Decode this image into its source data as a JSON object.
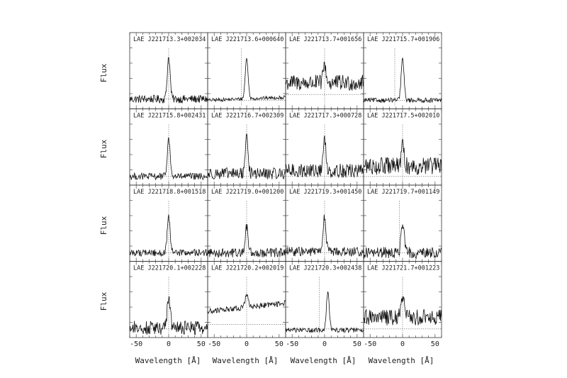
{
  "figure": {
    "ylabel": "Flux",
    "xlabel": "Wavelength [Å]"
  },
  "chart_data": {
    "type": "line",
    "grid": false,
    "rows": 4,
    "cols": 4,
    "shared_xlim": [
      -60,
      60
    ],
    "x_tick_labels": [
      "-50",
      "0",
      "50"
    ],
    "xlabel": "Wavelength [Å]",
    "ylabel": "Flux",
    "reference_lines": {
      "vertical_x": 0,
      "horizontal": "continuum level (dotted)"
    },
    "panels": [
      {
        "label": "LAE J221713.3+002034",
        "row": 0,
        "col": 0,
        "peak_x": 0,
        "peak_y": 0.85,
        "continuum": 0.12,
        "noise": 0.07,
        "trend": 0,
        "vline": 0,
        "hline": 0.12
      },
      {
        "label": "LAE J221713.6+000640",
        "row": 0,
        "col": 1,
        "peak_x": 0,
        "peak_y": 0.8,
        "continuum": 0.1,
        "noise": 0.03,
        "trend": 0.05,
        "vline": -8,
        "hline": 0.1
      },
      {
        "label": "LAE J221713.7+001656",
        "row": 0,
        "col": 2,
        "peak_x": 0,
        "peak_y": 0.72,
        "continuum": 0.4,
        "noise": 0.14,
        "trend": 0,
        "vline": 0,
        "hline": 0.2
      },
      {
        "label": "LAE J221715.7+001906",
        "row": 0,
        "col": 3,
        "peak_x": 0,
        "peak_y": 0.82,
        "continuum": 0.1,
        "noise": 0.04,
        "trend": 0,
        "vline": -12,
        "hline": 0.1
      },
      {
        "label": "LAE J221715.8+002431",
        "row": 1,
        "col": 0,
        "peak_x": 0,
        "peak_y": 0.75,
        "continuum": 0.1,
        "noise": 0.06,
        "trend": 0,
        "vline": 0,
        "hline": 0.1
      },
      {
        "label": "LAE J221716.7+002309",
        "row": 1,
        "col": 1,
        "peak_x": 0,
        "peak_y": 0.78,
        "continuum": 0.15,
        "noise": 0.1,
        "trend": 0,
        "vline": 0,
        "hline": 0.1
      },
      {
        "label": "LAE J221717.3+000728",
        "row": 1,
        "col": 2,
        "peak_x": 0,
        "peak_y": 0.72,
        "continuum": 0.2,
        "noise": 0.12,
        "trend": 0,
        "vline": 0,
        "hline": 0.1
      },
      {
        "label": "LAE J221717.5+002010",
        "row": 1,
        "col": 3,
        "peak_x": 0,
        "peak_y": 0.62,
        "continuum": 0.28,
        "noise": 0.15,
        "trend": 0,
        "vline": 0,
        "hline": 0.1
      },
      {
        "label": "LAE J221718.8+001518",
        "row": 2,
        "col": 0,
        "peak_x": 0,
        "peak_y": 0.7,
        "continuum": 0.1,
        "noise": 0.06,
        "trend": 0,
        "vline": 0,
        "hline": 0.1
      },
      {
        "label": "LAE J221719.0+001200",
        "row": 2,
        "col": 1,
        "peak_x": 0,
        "peak_y": 0.55,
        "continuum": 0.1,
        "noise": 0.08,
        "trend": 0,
        "vline": 0,
        "hline": 0.1
      },
      {
        "label": "LAE J221719.3+001450",
        "row": 2,
        "col": 2,
        "peak_x": 0,
        "peak_y": 0.72,
        "continuum": 0.12,
        "noise": 0.08,
        "trend": 0,
        "vline": 0,
        "hline": 0.1
      },
      {
        "label": "LAE J221719.7+001149",
        "row": 2,
        "col": 3,
        "peak_x": 0,
        "peak_y": 0.65,
        "continuum": 0.1,
        "noise": 0.1,
        "trend": 0,
        "vline": -5,
        "hline": 0.1
      },
      {
        "label": "LAE J221720.1+002228",
        "row": 3,
        "col": 0,
        "peak_x": 0,
        "peak_y": 0.68,
        "continuum": 0.12,
        "noise": 0.12,
        "trend": 0,
        "vline": 0,
        "hline": 0.1
      },
      {
        "label": "LAE J221720.2+002019",
        "row": 3,
        "col": 1,
        "peak_x": 0,
        "peak_y": 0.65,
        "continuum": 0.4,
        "noise": 0.05,
        "trend": 0.15,
        "vline": 0,
        "hline": 0.18
      },
      {
        "label": "LAE J221720.3+002438",
        "row": 3,
        "col": 2,
        "peak_x": 5,
        "peak_y": 0.75,
        "continuum": 0.08,
        "noise": 0.04,
        "trend": 0,
        "vline": -8,
        "hline": 0.1
      },
      {
        "label": "LAE J221721.7+001223",
        "row": 3,
        "col": 3,
        "peak_x": 0,
        "peak_y": 0.68,
        "continuum": 0.3,
        "noise": 0.14,
        "trend": 0,
        "vline": 0,
        "hline": 0.1
      }
    ]
  }
}
